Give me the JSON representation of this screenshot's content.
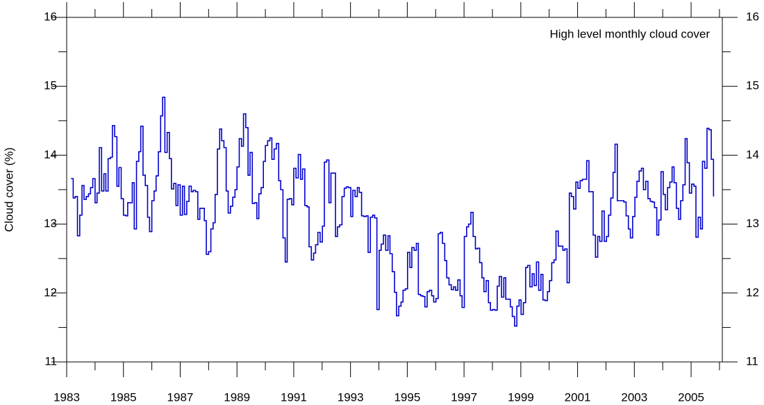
{
  "chart_data": {
    "type": "line",
    "step": true,
    "annotation": "High level monthly cloud cover",
    "ylabel": "Cloud cover (%)",
    "xlim": [
      1983,
      2006.1
    ],
    "ylim": [
      11,
      16
    ],
    "xticks": [
      1983,
      1985,
      1987,
      1989,
      1991,
      1993,
      1995,
      1997,
      1999,
      2001,
      2003,
      2005
    ],
    "xminorticks": [
      1984,
      1986,
      1988,
      1990,
      1992,
      1994,
      1996,
      1998,
      2000,
      2002,
      2004,
      2006
    ],
    "yticks": [
      11,
      12,
      13,
      14,
      15,
      16
    ],
    "yminorticks": [
      11.5,
      12.5,
      13.5,
      14.5,
      15.5
    ],
    "series": [
      {
        "color": "#0000cc",
        "x": [
          1983.15,
          1983.23,
          1983.3,
          1983.38,
          1983.46,
          1983.54,
          1983.61,
          1983.69,
          1983.77,
          1983.84,
          1983.92,
          1984.0,
          1984.07,
          1984.15,
          1984.23,
          1984.31,
          1984.38,
          1984.46,
          1984.54,
          1984.61,
          1984.69,
          1984.77,
          1984.84,
          1984.92,
          1985.0,
          1985.08,
          1985.15,
          1985.23,
          1985.31,
          1985.38,
          1985.46,
          1985.54,
          1985.61,
          1985.69,
          1985.77,
          1985.85,
          1985.92,
          1986.0,
          1986.08,
          1986.15,
          1986.23,
          1986.31,
          1986.38,
          1986.46,
          1986.54,
          1986.62,
          1986.69,
          1986.77,
          1986.85,
          1986.92,
          1987.0,
          1987.08,
          1987.15,
          1987.23,
          1987.31,
          1987.39,
          1987.46,
          1987.54,
          1987.62,
          1987.69,
          1987.77,
          1987.85,
          1987.92,
          1988.0,
          1988.08,
          1988.16,
          1988.23,
          1988.31,
          1988.39,
          1988.46,
          1988.54,
          1988.62,
          1988.69,
          1988.77,
          1988.85,
          1988.93,
          1989.0,
          1989.08,
          1989.16,
          1989.23,
          1989.31,
          1989.39,
          1989.46,
          1989.54,
          1989.62,
          1989.7,
          1989.77,
          1989.85,
          1989.93,
          1990.0,
          1990.08,
          1990.16,
          1990.23,
          1990.31,
          1990.39,
          1990.47,
          1990.54,
          1990.62,
          1990.7,
          1990.77,
          1990.85,
          1990.93,
          1991.0,
          1991.08,
          1991.16,
          1991.24,
          1991.31,
          1991.39,
          1991.47,
          1991.54,
          1991.62,
          1991.7,
          1991.77,
          1991.85,
          1991.93,
          1992.01,
          1992.08,
          1992.16,
          1992.24,
          1992.31,
          1992.39,
          1992.47,
          1992.54,
          1992.62,
          1992.7,
          1992.78,
          1992.85,
          1992.93,
          1993.01,
          1993.08,
          1993.16,
          1993.24,
          1993.31,
          1993.39,
          1993.47,
          1993.55,
          1993.62,
          1993.7,
          1993.78,
          1993.85,
          1993.93,
          1994.01,
          1994.08,
          1994.16,
          1994.24,
          1994.32,
          1994.39,
          1994.47,
          1994.55,
          1994.62,
          1994.7,
          1994.78,
          1994.85,
          1994.93,
          1995.01,
          1995.09,
          1995.16,
          1995.24,
          1995.32,
          1995.39,
          1995.47,
          1995.55,
          1995.62,
          1995.7,
          1995.78,
          1995.86,
          1995.93,
          1996.01,
          1996.09,
          1996.16,
          1996.24,
          1996.32,
          1996.39,
          1996.47,
          1996.55,
          1996.63,
          1996.7,
          1996.78,
          1996.86,
          1996.93,
          1997.01,
          1997.09,
          1997.16,
          1997.24,
          1997.32,
          1997.4,
          1997.47,
          1997.55,
          1997.63,
          1997.7,
          1997.78,
          1997.86,
          1997.93,
          1998.01,
          1998.09,
          1998.17,
          1998.24,
          1998.32,
          1998.4,
          1998.47,
          1998.55,
          1998.63,
          1998.7,
          1998.78,
          1998.86,
          1998.94,
          1999.01,
          1999.09,
          1999.17,
          1999.24,
          1999.32,
          1999.4,
          1999.47,
          1999.55,
          1999.63,
          1999.71,
          1999.78,
          1999.86,
          1999.94,
          2000.01,
          2000.09,
          2000.17,
          2000.24,
          2000.32,
          2000.4,
          2000.48,
          2000.55,
          2000.63,
          2000.71,
          2000.78,
          2000.86,
          2000.94,
          2001.01,
          2001.09,
          2001.17,
          2001.25,
          2001.32,
          2001.4,
          2001.48,
          2001.55,
          2001.63,
          2001.71,
          2001.78,
          2001.86,
          2001.94,
          2002.02,
          2002.09,
          2002.17,
          2002.25,
          2002.32,
          2002.4,
          2002.48,
          2002.55,
          2002.63,
          2002.71,
          2002.79,
          2002.86,
          2002.94,
          2003.02,
          2003.09,
          2003.17,
          2003.25,
          2003.32,
          2003.4,
          2003.48,
          2003.56,
          2003.63,
          2003.71,
          2003.79,
          2003.86,
          2003.94,
          2004.02,
          2004.09,
          2004.17,
          2004.25,
          2004.33,
          2004.4,
          2004.48,
          2004.56,
          2004.63,
          2004.71,
          2004.79,
          2004.86,
          2004.94,
          2005.02,
          2005.1,
          2005.17,
          2005.25,
          2005.33,
          2005.4,
          2005.48,
          2005.56,
          2005.63,
          2005.71,
          2005.79
        ],
        "values": [
          13.66,
          13.38,
          13.4,
          12.83,
          13.13,
          13.56,
          13.36,
          13.4,
          13.44,
          13.53,
          13.66,
          13.31,
          13.45,
          14.11,
          13.48,
          13.73,
          13.48,
          13.95,
          13.97,
          14.43,
          14.27,
          13.55,
          13.82,
          13.37,
          13.13,
          13.12,
          13.31,
          13.31,
          13.6,
          12.93,
          13.91,
          14.05,
          14.42,
          13.71,
          13.56,
          13.1,
          12.89,
          13.34,
          13.48,
          13.7,
          14.05,
          14.57,
          14.84,
          14.04,
          14.33,
          13.95,
          13.51,
          13.59,
          13.27,
          13.57,
          13.13,
          13.55,
          13.14,
          13.33,
          13.55,
          13.47,
          13.49,
          13.47,
          13.07,
          13.23,
          13.23,
          13.05,
          12.56,
          12.6,
          12.93,
          13.02,
          13.43,
          14.09,
          14.38,
          14.21,
          14.11,
          13.48,
          13.16,
          13.26,
          13.39,
          13.5,
          13.83,
          14.24,
          14.13,
          14.6,
          14.4,
          13.71,
          14.04,
          13.3,
          13.31,
          13.08,
          13.44,
          13.53,
          13.91,
          14.14,
          14.21,
          14.25,
          13.94,
          14.09,
          14.17,
          13.63,
          13.5,
          12.8,
          12.45,
          13.36,
          13.37,
          13.28,
          13.81,
          13.67,
          14.01,
          13.65,
          13.8,
          13.27,
          13.25,
          12.67,
          12.48,
          12.58,
          12.7,
          12.88,
          12.74,
          12.97,
          13.9,
          13.93,
          13.31,
          13.74,
          13.74,
          12.82,
          12.96,
          12.99,
          13.4,
          13.52,
          13.54,
          13.53,
          13.11,
          13.49,
          13.4,
          13.53,
          13.46,
          13.12,
          13.11,
          13.12,
          12.59,
          13.1,
          13.13,
          13.09,
          11.76,
          12.62,
          12.71,
          12.84,
          12.62,
          12.83,
          12.57,
          12.31,
          12.01,
          11.67,
          11.81,
          11.87,
          12.04,
          12.06,
          12.59,
          12.37,
          12.66,
          12.62,
          12.72,
          11.98,
          11.96,
          11.95,
          11.8,
          12.02,
          12.04,
          11.96,
          11.87,
          11.92,
          12.86,
          12.88,
          12.72,
          12.47,
          12.22,
          12.12,
          12.05,
          12.09,
          12.04,
          12.19,
          11.96,
          11.79,
          12.82,
          12.96,
          13.0,
          13.17,
          12.82,
          12.64,
          12.65,
          12.44,
          12.22,
          12.02,
          12.18,
          11.86,
          11.75,
          11.76,
          11.75,
          12.1,
          12.24,
          11.94,
          12.22,
          11.91,
          11.91,
          11.8,
          11.66,
          11.52,
          11.81,
          11.9,
          11.69,
          11.86,
          12.37,
          12.4,
          12.09,
          12.28,
          12.11,
          12.45,
          12.04,
          12.27,
          11.9,
          11.89,
          12.02,
          12.18,
          12.44,
          12.48,
          12.9,
          12.68,
          12.68,
          12.62,
          12.64,
          12.15,
          13.45,
          13.4,
          13.22,
          13.61,
          13.52,
          13.63,
          13.65,
          13.65,
          13.92,
          13.47,
          13.47,
          12.84,
          12.52,
          12.82,
          12.75,
          13.19,
          12.75,
          12.82,
          13.13,
          13.38,
          13.75,
          14.16,
          13.34,
          13.34,
          13.34,
          13.32,
          13.12,
          12.93,
          12.8,
          13.11,
          13.39,
          13.62,
          13.77,
          13.81,
          13.5,
          13.62,
          13.37,
          13.33,
          13.32,
          13.24,
          12.84,
          13.06,
          13.76,
          13.43,
          13.21,
          13.53,
          13.61,
          13.83,
          13.6,
          13.23,
          13.07,
          13.34,
          13.57,
          14.24,
          13.89,
          13.45,
          13.58,
          13.55,
          12.81,
          13.1,
          12.93,
          13.91,
          13.81,
          14.39,
          14.37,
          13.94,
          13.4
        ]
      }
    ]
  }
}
